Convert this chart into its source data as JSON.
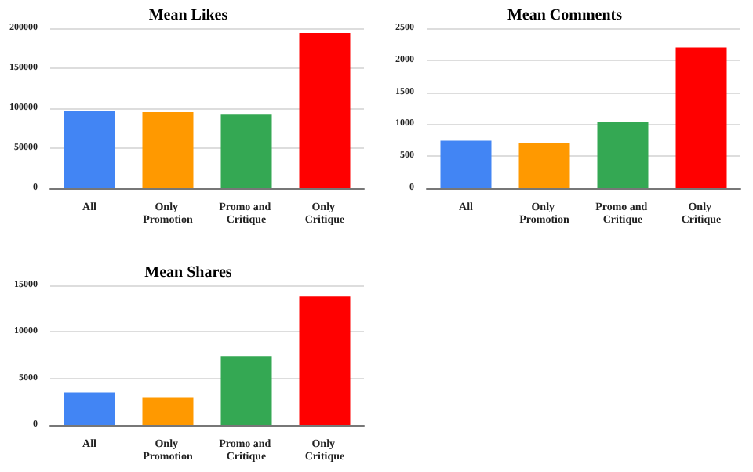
{
  "chart_data": [
    {
      "type": "bar",
      "title": "Mean Likes",
      "categories": [
        "All",
        "Only Promotion",
        "Promo and Critique",
        "Only Critique"
      ],
      "values": [
        97000,
        95000,
        92000,
        194000
      ],
      "colors": [
        "#4285f4",
        "#ff9900",
        "#34a853",
        "#ff0000"
      ],
      "ylim": [
        0,
        200000
      ],
      "yticks": [
        0,
        50000,
        100000,
        150000,
        200000
      ],
      "grid": "y"
    },
    {
      "type": "bar",
      "title": "Mean Comments",
      "categories": [
        "All",
        "Only Promotion",
        "Promo and Critique",
        "Only Critique"
      ],
      "values": [
        740,
        700,
        1030,
        2200
      ],
      "colors": [
        "#4285f4",
        "#ff9900",
        "#34a853",
        "#ff0000"
      ],
      "ylim": [
        0,
        2500
      ],
      "yticks": [
        0,
        500,
        1000,
        1500,
        2000,
        2500
      ],
      "grid": "y"
    },
    {
      "type": "bar",
      "title": "Mean Shares",
      "categories": [
        "All",
        "Only Promotion",
        "Promo and Critique",
        "Only Critique"
      ],
      "values": [
        3500,
        3000,
        7400,
        13800
      ],
      "colors": [
        "#4285f4",
        "#ff9900",
        "#34a853",
        "#ff0000"
      ],
      "ylim": [
        0,
        15000
      ],
      "yticks": [
        0,
        5000,
        10000,
        15000
      ],
      "grid": "y"
    }
  ]
}
